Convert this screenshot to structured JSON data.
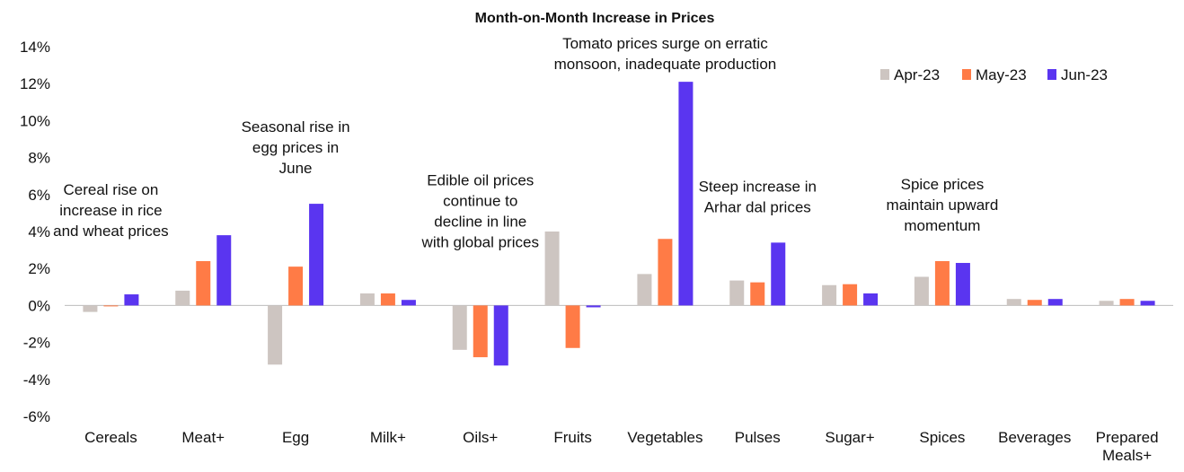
{
  "chart_data": {
    "type": "bar",
    "title": "Month-on-Month Increase in Prices",
    "xlabel": "",
    "ylabel": "",
    "ylim": [
      -6,
      14
    ],
    "yticks": [
      "14%",
      "12%",
      "10%",
      "8%",
      "6%",
      "4%",
      "2%",
      "0%",
      "-2%",
      "-4%",
      "-6%"
    ],
    "categories": [
      "Cereals",
      "Meat+",
      "Egg",
      "Milk+",
      "Oils+",
      "Fruits",
      "Vegetables",
      "Pulses",
      "Sugar+",
      "Spices",
      "Beverages",
      "Prepared Meals+"
    ],
    "category_lines": [
      [
        "Cereals"
      ],
      [
        "Meat+"
      ],
      [
        "Egg"
      ],
      [
        "Milk+"
      ],
      [
        "Oils+"
      ],
      [
        "Fruits"
      ],
      [
        "Vegetables"
      ],
      [
        "Pulses"
      ],
      [
        "Sugar+"
      ],
      [
        "Spices"
      ],
      [
        "Beverages"
      ],
      [
        "Prepared",
        "Meals+"
      ]
    ],
    "series": [
      {
        "name": "Apr-23",
        "color": "#cdc5c1",
        "values": [
          -0.35,
          0.8,
          -3.2,
          0.65,
          -2.4,
          4.0,
          1.7,
          1.35,
          1.1,
          1.55,
          0.35,
          0.25
        ]
      },
      {
        "name": "May-23",
        "color": "#ff7b46",
        "values": [
          -0.05,
          2.4,
          2.1,
          0.65,
          -2.8,
          -2.3,
          3.6,
          1.25,
          1.15,
          2.4,
          0.3,
          0.35
        ]
      },
      {
        "name": "Jun-23",
        "color": "#5a35f0",
        "values": [
          0.6,
          3.8,
          5.5,
          0.3,
          -3.25,
          -0.1,
          12.1,
          3.4,
          0.65,
          2.3,
          0.35,
          0.25
        ]
      }
    ],
    "legend_position": "top-right",
    "grid": false,
    "annotations": [
      {
        "category": "Cereals",
        "lines": [
          "Cereal rise on",
          "increase in rice",
          "and wheat prices"
        ]
      },
      {
        "category": "Egg",
        "lines": [
          "Seasonal rise in",
          "egg prices in",
          "June"
        ]
      },
      {
        "category": "Oils+",
        "lines": [
          "Edible oil prices",
          "continue to",
          "decline in line",
          "with global prices"
        ]
      },
      {
        "category": "Vegetables",
        "lines": [
          "Tomato prices surge on erratic",
          "monsoon, inadequate production"
        ]
      },
      {
        "category": "Pulses",
        "lines": [
          "Steep increase in",
          "Arhar dal prices"
        ]
      },
      {
        "category": "Spices",
        "lines": [
          "Spice prices",
          "maintain upward",
          "momentum"
        ]
      }
    ]
  }
}
